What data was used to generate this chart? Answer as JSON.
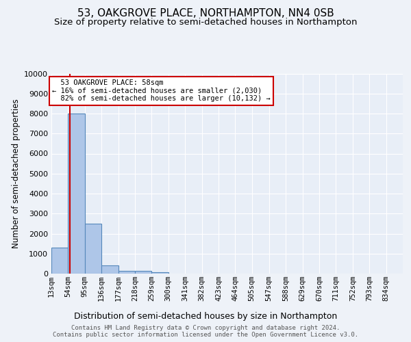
{
  "title": "53, OAKGROVE PLACE, NORTHAMPTON, NN4 0SB",
  "subtitle": "Size of property relative to semi-detached houses in Northampton",
  "xlabel": "Distribution of semi-detached houses by size in Northampton",
  "ylabel": "Number of semi-detached properties",
  "footer": "Contains HM Land Registry data © Crown copyright and database right 2024.\nContains public sector information licensed under the Open Government Licence v3.0.",
  "bin_edges": [
    13,
    54,
    95,
    136,
    177,
    218,
    259,
    300,
    341,
    382,
    423,
    464,
    505,
    547,
    588,
    629,
    670,
    711,
    752,
    793,
    834
  ],
  "bar_heights": [
    1300,
    8000,
    2500,
    400,
    150,
    120,
    80,
    0,
    0,
    0,
    0,
    0,
    0,
    0,
    0,
    0,
    0,
    0,
    0,
    0
  ],
  "bar_color": "#aec6e8",
  "bar_edge_color": "#5588bb",
  "background_color": "#e8eef7",
  "fig_background_color": "#eef2f8",
  "grid_color": "#ffffff",
  "property_size": 58,
  "property_line_color": "#cc0000",
  "ylim": [
    0,
    10000
  ],
  "yticks": [
    0,
    1000,
    2000,
    3000,
    4000,
    5000,
    6000,
    7000,
    8000,
    9000,
    10000
  ],
  "annotation_text": "  53 OAKGROVE PLACE: 58sqm\n← 16% of semi-detached houses are smaller (2,030)\n  82% of semi-detached houses are larger (10,132) →",
  "annotation_box_color": "#ffffff",
  "annotation_box_edge": "#cc0000",
  "title_fontsize": 11,
  "subtitle_fontsize": 9.5,
  "tick_label_fontsize": 7.5,
  "ylabel_fontsize": 8.5,
  "xlabel_fontsize": 9,
  "footer_fontsize": 6.5,
  "annotation_fontsize": 7.5
}
